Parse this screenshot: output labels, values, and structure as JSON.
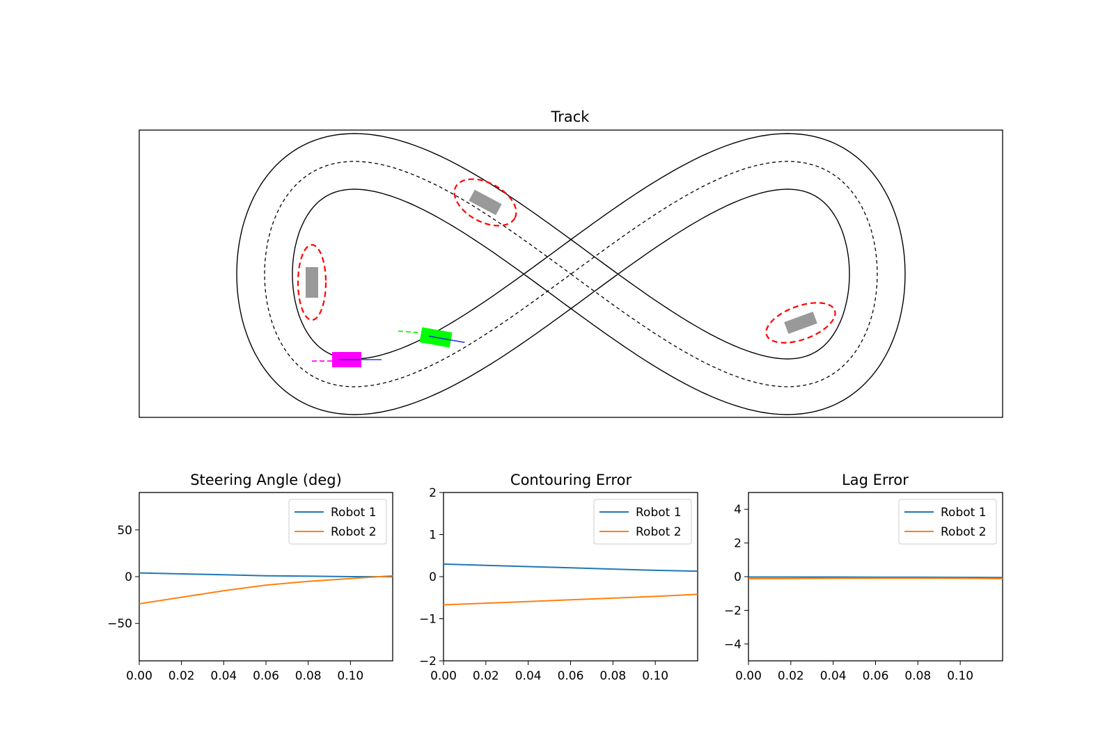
{
  "chart_data": [
    {
      "type": "line",
      "title": "Track",
      "xlabel": "",
      "ylabel": "",
      "grid": false,
      "ticks": "hidden",
      "ellipse_colors": [
        "#ff0000"
      ],
      "colors": {
        "track_edge": "#000000",
        "centerline": "#000000",
        "obstacle": "#999999",
        "robot_1_vehicle": "#00ff00",
        "robot_2_vehicle": "#ff00ff",
        "prediction": "#0000ff"
      }
    },
    {
      "type": "line",
      "title": "Steering Angle (deg)",
      "xlabel": "",
      "ylabel": "",
      "xlim": [
        0,
        0.12
      ],
      "ylim": [
        -90,
        90
      ],
      "xticks": [
        "0.00",
        "0.02",
        "0.04",
        "0.06",
        "0.08",
        "0.10"
      ],
      "xtick_values": [
        0,
        0.02,
        0.04,
        0.06,
        0.08,
        0.1
      ],
      "yticks": [
        "50",
        "0",
        "−50"
      ],
      "ytick_values": [
        50,
        0,
        -50
      ],
      "legend": "top-right",
      "grid": false,
      "series": [
        {
          "name": "Robot 1",
          "color": "#1f77b4",
          "x": [
            0,
            0.02,
            0.04,
            0.06,
            0.08,
            0.1,
            0.12
          ],
          "y": [
            4,
            3,
            2,
            1,
            0.5,
            0,
            0
          ]
        },
        {
          "name": "Robot 2",
          "color": "#ff7f0e",
          "x": [
            0,
            0.02,
            0.04,
            0.06,
            0.08,
            0.1,
            0.12
          ],
          "y": [
            -29,
            -22,
            -15,
            -9,
            -5,
            -2,
            1
          ]
        }
      ]
    },
    {
      "type": "line",
      "title": "Contouring Error",
      "xlabel": "",
      "ylabel": "",
      "xlim": [
        0,
        0.12
      ],
      "ylim": [
        -2,
        2
      ],
      "xticks": [
        "0.00",
        "0.02",
        "0.04",
        "0.06",
        "0.08",
        "0.10"
      ],
      "xtick_values": [
        0,
        0.02,
        0.04,
        0.06,
        0.08,
        0.1
      ],
      "yticks": [
        "2",
        "1",
        "0",
        "−1",
        "−2"
      ],
      "ytick_values": [
        2,
        1,
        0,
        -1,
        -2
      ],
      "legend": "top-right",
      "grid": false,
      "series": [
        {
          "name": "Robot 1",
          "color": "#1f77b4",
          "x": [
            0,
            0.02,
            0.04,
            0.06,
            0.08,
            0.1,
            0.12
          ],
          "y": [
            0.3,
            0.27,
            0.24,
            0.21,
            0.18,
            0.15,
            0.13
          ]
        },
        {
          "name": "Robot 2",
          "color": "#ff7f0e",
          "x": [
            0,
            0.02,
            0.04,
            0.06,
            0.08,
            0.1,
            0.12
          ],
          "y": [
            -0.67,
            -0.63,
            -0.59,
            -0.55,
            -0.51,
            -0.47,
            -0.42
          ]
        }
      ]
    },
    {
      "type": "line",
      "title": "Lag Error",
      "xlabel": "",
      "ylabel": "",
      "xlim": [
        0,
        0.12
      ],
      "ylim": [
        -5,
        5
      ],
      "xticks": [
        "0.00",
        "0.02",
        "0.04",
        "0.06",
        "0.08",
        "0.10"
      ],
      "xtick_values": [
        0,
        0.02,
        0.04,
        0.06,
        0.08,
        0.1
      ],
      "yticks": [
        "4",
        "2",
        "0",
        "−2",
        "−4"
      ],
      "ytick_values": [
        4,
        2,
        0,
        -2,
        -4
      ],
      "legend": "top-right",
      "grid": false,
      "series": [
        {
          "name": "Robot 1",
          "color": "#1f77b4",
          "x": [
            0,
            0.02,
            0.04,
            0.06,
            0.08,
            0.1,
            0.12
          ],
          "y": [
            -0.02,
            -0.02,
            -0.02,
            -0.03,
            -0.03,
            -0.04,
            -0.05
          ]
        },
        {
          "name": "Robot 2",
          "color": "#ff7f0e",
          "x": [
            0,
            0.02,
            0.04,
            0.06,
            0.08,
            0.1,
            0.12
          ],
          "y": [
            -0.12,
            -0.11,
            -0.1,
            -0.09,
            -0.09,
            -0.1,
            -0.12
          ]
        }
      ]
    }
  ]
}
